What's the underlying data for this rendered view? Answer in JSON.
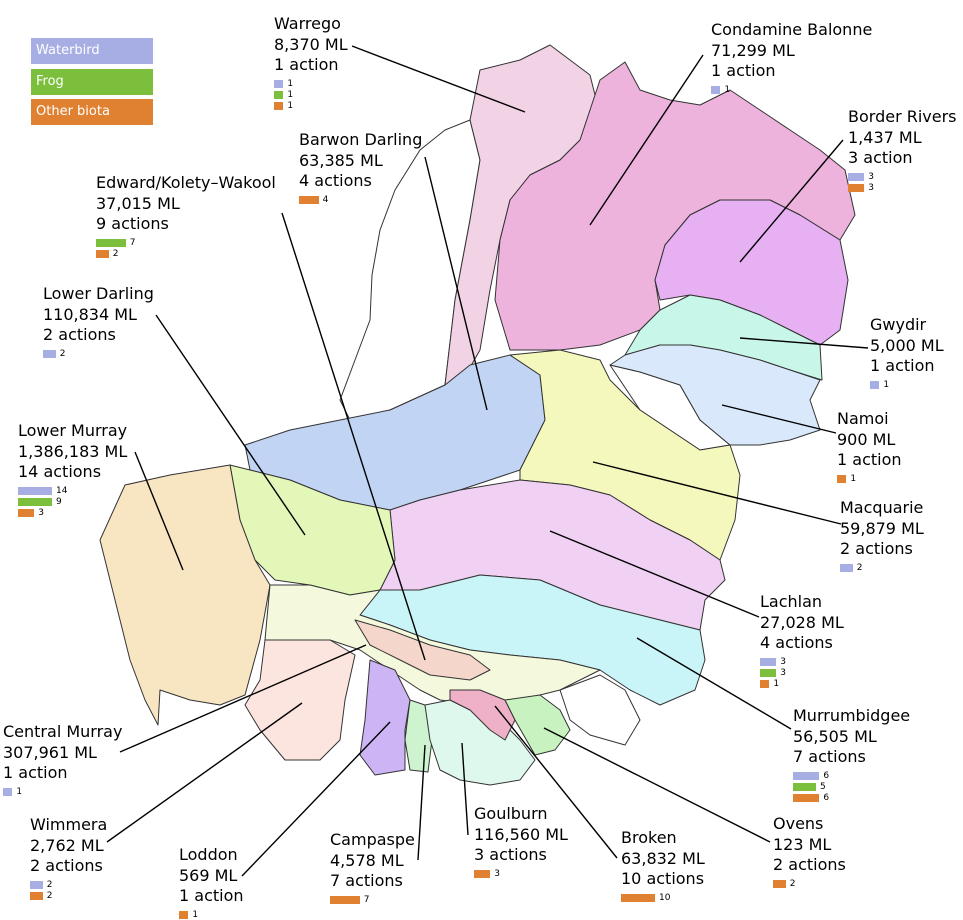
{
  "colors": {
    "waterbird": "#a6aee4",
    "frog": "#7cbf3c",
    "other_biota": "#e08132"
  },
  "legend": [
    {
      "key": "waterbird",
      "label": "Waterbird"
    },
    {
      "key": "frog",
      "label": "Frog"
    },
    {
      "key": "other_biota",
      "label": "Other biota"
    }
  ],
  "catchments": [
    {
      "id": "warrego",
      "name": "Warrego",
      "volume": "8,370 ML",
      "actions": "1 action",
      "color": "#f2d3e6",
      "bars": [
        {
          "type": "waterbird",
          "count": 1
        },
        {
          "type": "frog",
          "count": 1
        },
        {
          "type": "other_biota",
          "count": 1
        }
      ]
    },
    {
      "id": "condamine",
      "name": "Condamine Balonne",
      "volume": "71,299 ML",
      "actions": "1 action",
      "color": "#edb3dc",
      "bars": [
        {
          "type": "waterbird",
          "count": 1
        }
      ]
    },
    {
      "id": "border",
      "name": "Border Rivers",
      "volume": "1,437 ML",
      "actions": "3 action",
      "color": "#e6b0f3",
      "bars": [
        {
          "type": "waterbird",
          "count": 3
        },
        {
          "type": "other_biota",
          "count": 3
        }
      ]
    },
    {
      "id": "barwon",
      "name": "Barwon Darling",
      "volume": "63,385 ML",
      "actions": "4 actions",
      "color": "#c2d4f4",
      "bars": [
        {
          "type": "other_biota",
          "count": 4
        }
      ]
    },
    {
      "id": "edward",
      "name": "Edward/Kolety–Wakool",
      "volume": "37,015 ML",
      "actions": "9 actions",
      "color": "#f4d6cb",
      "bars": [
        {
          "type": "frog",
          "count": 7
        },
        {
          "type": "other_biota",
          "count": 2
        }
      ]
    },
    {
      "id": "lowerdarling",
      "name": "Lower Darling",
      "volume": "110,834 ML",
      "actions": "2 actions",
      "color": "#e3f8b8",
      "bars": [
        {
          "type": "waterbird",
          "count": 2
        }
      ]
    },
    {
      "id": "gwydir",
      "name": "Gwydir",
      "volume": "5,000 ML",
      "actions": "1 action",
      "color": "#c8f6e9",
      "bars": [
        {
          "type": "waterbird",
          "count": 1
        }
      ]
    },
    {
      "id": "namoi",
      "name": "Namoi",
      "volume": "900 ML",
      "actions": "1 action",
      "color": "#d9e8fa",
      "bars": [
        {
          "type": "other_biota",
          "count": 1
        }
      ]
    },
    {
      "id": "lowermurray",
      "name": "Lower Murray",
      "volume": "1,386,183 ML",
      "actions": "14 actions",
      "color": "#f8e6c2",
      "bars": [
        {
          "type": "waterbird",
          "count": 14
        },
        {
          "type": "frog",
          "count": 9
        },
        {
          "type": "other_biota",
          "count": 3
        }
      ]
    },
    {
      "id": "macquarie",
      "name": "Macquarie",
      "volume": "59,879 ML",
      "actions": "2 actions",
      "color": "#f5f8bc",
      "bars": [
        {
          "type": "waterbird",
          "count": 2
        }
      ]
    },
    {
      "id": "lachlan",
      "name": "Lachlan",
      "volume": "27,028 ML",
      "actions": "4 actions",
      "color": "#f0d0f3",
      "bars": [
        {
          "type": "waterbird",
          "count": 3
        },
        {
          "type": "frog",
          "count": 3
        },
        {
          "type": "other_biota",
          "count": 1
        }
      ]
    },
    {
      "id": "murrumbidgee",
      "name": "Murrumbidgee",
      "volume": "56,505 ML",
      "actions": "7 actions",
      "color": "#c9f4f8",
      "bars": [
        {
          "type": "waterbird",
          "count": 6
        },
        {
          "type": "frog",
          "count": 5
        },
        {
          "type": "other_biota",
          "count": 6
        }
      ]
    },
    {
      "id": "centralmurray",
      "name": "Central Murray",
      "volume": "307,961 ML",
      "actions": "1 action",
      "color": "#f4f8dc",
      "bars": [
        {
          "type": "waterbird",
          "count": 1
        }
      ]
    },
    {
      "id": "wimmera",
      "name": "Wimmera",
      "volume": "2,762 ML",
      "actions": "2 actions",
      "color": "#fbe5de",
      "bars": [
        {
          "type": "waterbird",
          "count": 2
        },
        {
          "type": "other_biota",
          "count": 2
        }
      ]
    },
    {
      "id": "loddon",
      "name": "Loddon",
      "volume": "569 ML",
      "actions": "1 action",
      "color": "#cdb4f4",
      "bars": [
        {
          "type": "other_biota",
          "count": 1
        }
      ]
    },
    {
      "id": "campaspe",
      "name": "Campaspe",
      "volume": "4,578 ML",
      "actions": "7 actions",
      "color": "#cdf3cf",
      "bars": [
        {
          "type": "other_biota",
          "count": 7
        }
      ]
    },
    {
      "id": "goulburn",
      "name": "Goulburn",
      "volume": "116,560 ML",
      "actions": "3 actions",
      "color": "#dff8ee",
      "bars": [
        {
          "type": "other_biota",
          "count": 3
        }
      ]
    },
    {
      "id": "broken",
      "name": "Broken",
      "volume": "63,832 ML",
      "actions": "10 actions",
      "color": "#efb1c8",
      "bars": [
        {
          "type": "other_biota",
          "count": 10
        }
      ]
    },
    {
      "id": "ovens",
      "name": "Ovens",
      "volume": "123 ML",
      "actions": "2 actions",
      "color": "#c8f2c0",
      "bars": [
        {
          "type": "other_biota",
          "count": 2
        }
      ]
    }
  ]
}
